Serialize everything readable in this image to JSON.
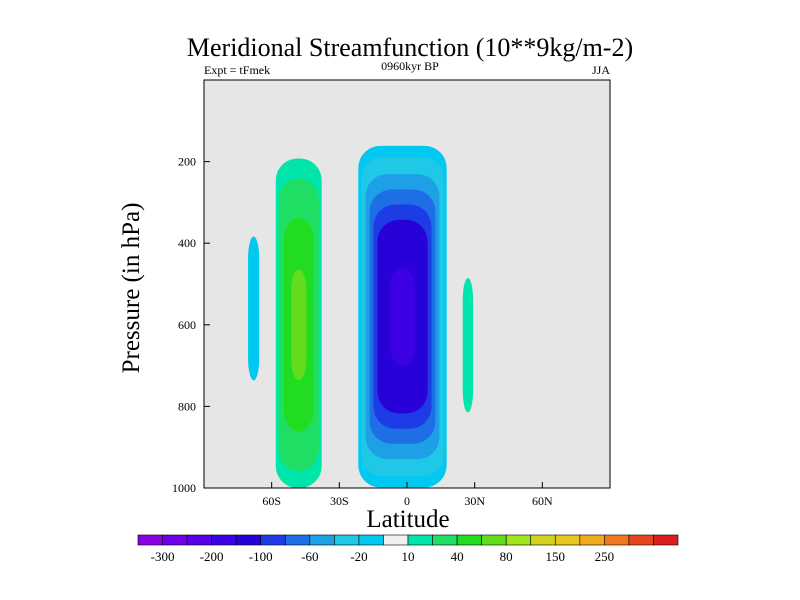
{
  "chart_data": {
    "type": "heatmap",
    "subtype": "filled-contour",
    "title": "Meridional Streamfunction (10**9kg/m-2)",
    "left_string": "Expt = tFmek",
    "center_string": "0960kyr BP",
    "right_string": "JJA",
    "xlabel": "Latitude",
    "ylabel": "Pressure (in hPa)",
    "xlim": [
      -90,
      90
    ],
    "ylim": [
      1000,
      0
    ],
    "x_ticks": [
      {
        "value": -60,
        "label": "60S"
      },
      {
        "value": -30,
        "label": "30S"
      },
      {
        "value": 0,
        "label": "0"
      },
      {
        "value": 30,
        "label": "30N"
      },
      {
        "value": 60,
        "label": "60N"
      }
    ],
    "y_ticks": [
      {
        "value": 200,
        "label": "200"
      },
      {
        "value": 400,
        "label": "400"
      },
      {
        "value": 600,
        "label": "600"
      },
      {
        "value": 800,
        "label": "800"
      },
      {
        "value": 1000,
        "label": "1000"
      }
    ],
    "missing_color": "#e6e6e6",
    "levels": [
      -300,
      -250,
      -200,
      -150,
      -100,
      -80,
      -60,
      -40,
      -20,
      -10,
      10,
      20,
      40,
      60,
      80,
      100,
      150,
      200,
      250,
      300
    ],
    "colorbar_labels": [
      {
        "value": -300,
        "label": "-300"
      },
      {
        "value": -200,
        "label": "-200"
      },
      {
        "value": -100,
        "label": "-100"
      },
      {
        "value": -60,
        "label": "-60"
      },
      {
        "value": -20,
        "label": "-20"
      },
      {
        "value": 10,
        "label": "10"
      },
      {
        "value": 40,
        "label": "40"
      },
      {
        "value": 80,
        "label": "80"
      },
      {
        "value": 150,
        "label": "150"
      },
      {
        "value": 250,
        "label": "250"
      }
    ],
    "colors": [
      "#8c00e6",
      "#7000e8",
      "#5800e8",
      "#3c00e4",
      "#2800d8",
      "#1e3ce6",
      "#1e6ee6",
      "#1ea0e6",
      "#1ec8e6",
      "#00c8f0",
      "#f0f0f0",
      "#00e6aa",
      "#1ede64",
      "#22dc22",
      "#64dc1e",
      "#a0e61e",
      "#d2d21e",
      "#e6c81e",
      "#f0aa1e",
      "#f0781e",
      "#e6461e",
      "#dc1e1e"
    ],
    "cells": [
      {
        "name": "southern-blue-cell",
        "lat": -68,
        "p": 560,
        "hw": 6,
        "hh": 430,
        "peak": -15,
        "sharp": 2.2
      },
      {
        "name": "southern-green-cell",
        "lat": -48,
        "p": 600,
        "hw": 12,
        "hh": 480,
        "peak": 68,
        "sharp": 1.5
      },
      {
        "name": "tropical-cell",
        "lat": -2,
        "p": 580,
        "hw": 22,
        "hh": 470,
        "peak": -170,
        "sharp": 1.8
      },
      {
        "name": "northern-cell",
        "lat": 27,
        "p": 650,
        "hw": 5,
        "hh": 360,
        "peak": 18,
        "sharp": 2.5
      }
    ]
  }
}
